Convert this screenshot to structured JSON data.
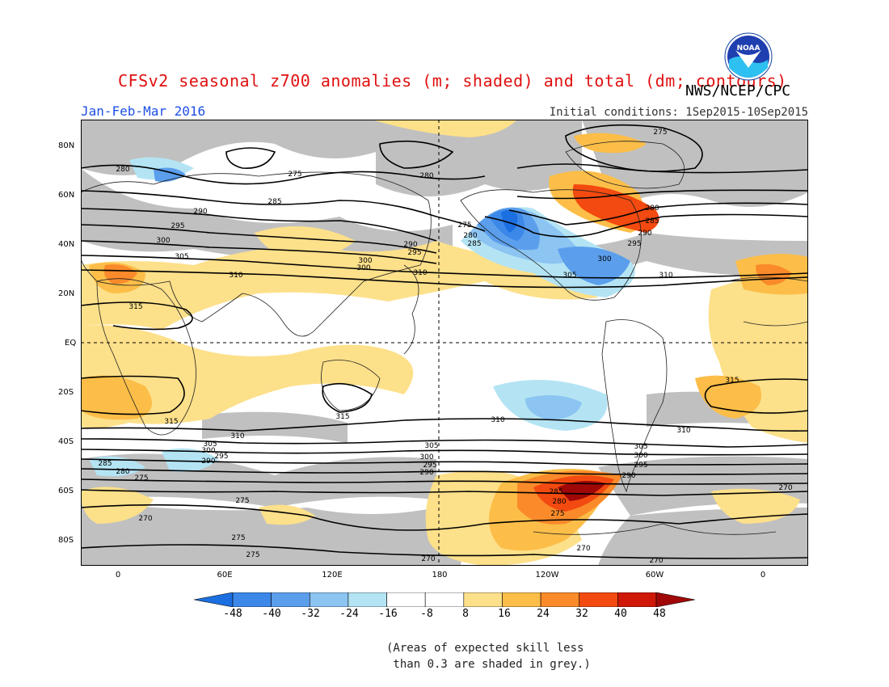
{
  "title": "CFSv2 seasonal z700 anomalies (m; shaded) and total (dm; contours)",
  "agency": "NWS/NCEP/CPC",
  "logo_text": "NOAA",
  "season": "Jan-Feb-Mar 2016",
  "initial_conditions": "Initial conditions: 1Sep2015-10Sep2015",
  "lat_labels": [
    "80N",
    "60N",
    "40N",
    "20N",
    "EQ",
    "20S",
    "40S",
    "60S",
    "80S"
  ],
  "lon_labels": [
    "0",
    "60E",
    "120E",
    "180",
    "120W",
    "60W",
    "0"
  ],
  "colorbar_labels": [
    "-48",
    "-40",
    "-32",
    "-24",
    "-16",
    "-8",
    "8",
    "16",
    "24",
    "32",
    "40",
    "48"
  ],
  "colorbar_colors": [
    "#1c6fe0",
    "#3c88e8",
    "#5a9eec",
    "#8cc4f2",
    "#b4e4f4",
    "#ffffff",
    "#fde08a",
    "#fcbe48",
    "#fa8a2a",
    "#f24a10",
    "#d01808",
    "#a00808"
  ],
  "skill_mask_color": "#c0c0c0",
  "note_line1": "(Areas of expected skill less",
  "note_line2": " than 0.3 are shaded in grey.)",
  "contour_labels": {
    "nh": [
      "275",
      "280",
      "285",
      "290",
      "295",
      "300",
      "305",
      "310",
      "315"
    ],
    "sh": [
      "315",
      "310",
      "305",
      "300",
      "295",
      "290",
      "285",
      "280",
      "275",
      "270"
    ]
  }
}
